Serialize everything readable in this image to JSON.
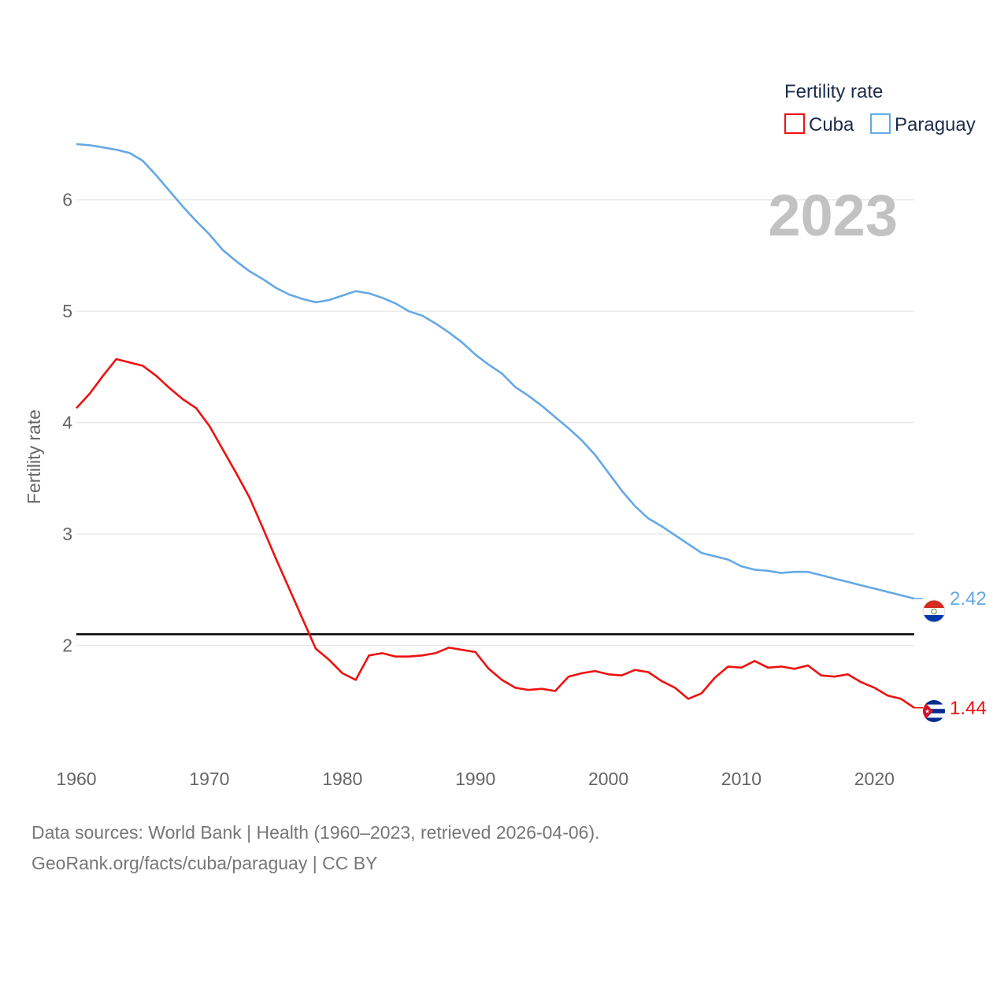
{
  "chart_data": {
    "type": "line",
    "title": "",
    "current_year": "2023",
    "ylabel": "Fertility rate",
    "xlabel": "",
    "xlim": [
      1960,
      2023
    ],
    "ylim": [
      1.0,
      6.5
    ],
    "y_ticks": [
      2,
      3,
      4,
      5,
      6
    ],
    "x_ticks": [
      1960,
      1970,
      1980,
      1990,
      2000,
      2010,
      2020
    ],
    "grid": true,
    "reference_line": 2.1,
    "legend": {
      "title": "Fertility rate",
      "position": "top-right",
      "items": [
        "Cuba",
        "Paraguay"
      ]
    },
    "x": [
      1960,
      1961,
      1962,
      1963,
      1964,
      1965,
      1966,
      1967,
      1968,
      1969,
      1970,
      1971,
      1972,
      1973,
      1974,
      1975,
      1976,
      1977,
      1978,
      1979,
      1980,
      1981,
      1982,
      1983,
      1984,
      1985,
      1986,
      1987,
      1988,
      1989,
      1990,
      1991,
      1992,
      1993,
      1994,
      1995,
      1996,
      1997,
      1998,
      1999,
      2000,
      2001,
      2002,
      2003,
      2004,
      2005,
      2006,
      2007,
      2008,
      2009,
      2010,
      2011,
      2012,
      2013,
      2014,
      2015,
      2016,
      2017,
      2018,
      2019,
      2020,
      2021,
      2022,
      2023
    ],
    "series": [
      {
        "name": "Cuba",
        "color": "#ee1111",
        "end_label": "1.44",
        "values": [
          4.13,
          4.26,
          4.42,
          4.57,
          4.54,
          4.51,
          4.42,
          4.31,
          4.21,
          4.13,
          3.97,
          3.76,
          3.55,
          3.33,
          3.06,
          2.78,
          2.51,
          2.24,
          1.97,
          1.87,
          1.75,
          1.69,
          1.91,
          1.93,
          1.9,
          1.9,
          1.91,
          1.93,
          1.98,
          1.96,
          1.94,
          1.79,
          1.69,
          1.62,
          1.6,
          1.61,
          1.59,
          1.72,
          1.75,
          1.77,
          1.74,
          1.73,
          1.78,
          1.76,
          1.68,
          1.62,
          1.52,
          1.57,
          1.71,
          1.81,
          1.8,
          1.86,
          1.8,
          1.81,
          1.79,
          1.82,
          1.73,
          1.72,
          1.74,
          1.67,
          1.62,
          1.55,
          1.52,
          1.44
        ]
      },
      {
        "name": "Paraguay",
        "color": "#64a8e6",
        "end_label": "2.42",
        "values": [
          6.5,
          6.49,
          6.47,
          6.45,
          6.42,
          6.35,
          6.22,
          6.08,
          5.94,
          5.81,
          5.69,
          5.55,
          5.45,
          5.36,
          5.29,
          5.21,
          5.15,
          5.11,
          5.08,
          5.1,
          5.14,
          5.18,
          5.16,
          5.12,
          5.07,
          5.0,
          4.96,
          4.89,
          4.81,
          4.72,
          4.61,
          4.52,
          4.44,
          4.32,
          4.24,
          4.15,
          4.05,
          3.95,
          3.84,
          3.71,
          3.55,
          3.39,
          3.25,
          3.14,
          3.07,
          2.99,
          2.91,
          2.83,
          2.8,
          2.77,
          2.71,
          2.68,
          2.67,
          2.65,
          2.66,
          2.66,
          2.63,
          2.6,
          2.57,
          2.54,
          2.51,
          2.48,
          2.45,
          2.42
        ]
      }
    ]
  },
  "footer": {
    "line1": "Data sources: World Bank | Health (1960–2023, retrieved 2026-04-06).",
    "line2": "GeoRank.org/facts/cuba/paraguay | CC BY"
  }
}
